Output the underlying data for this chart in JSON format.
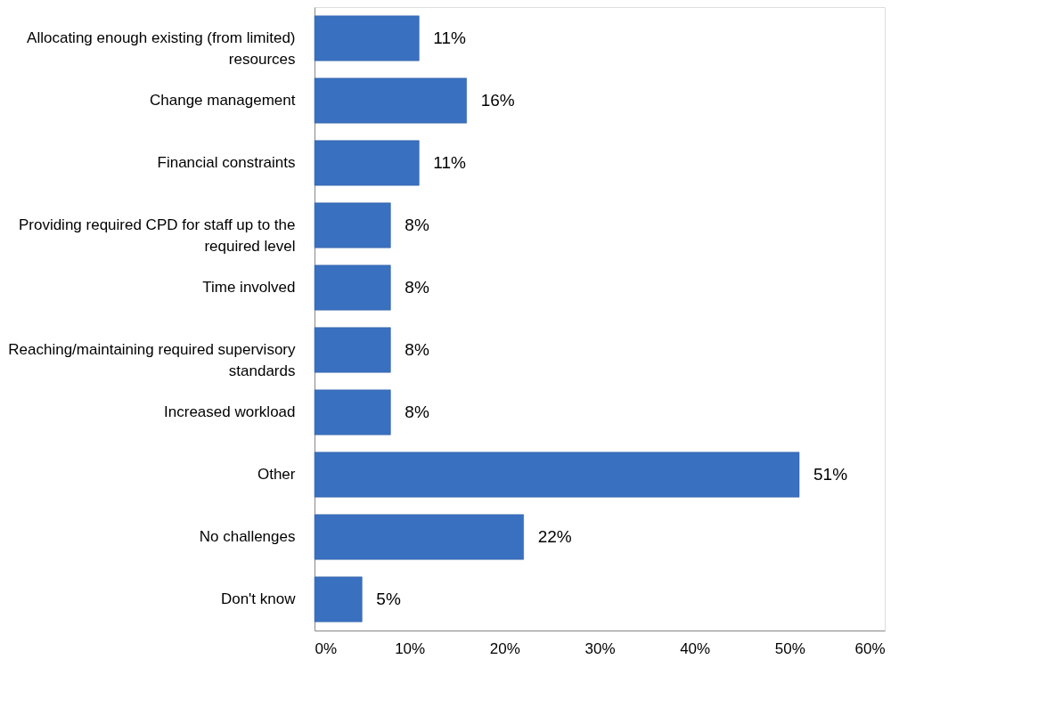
{
  "chart_data": {
    "type": "bar",
    "orientation": "horizontal",
    "categories": [
      "Allocating enough existing (from limited) resources",
      "Change management",
      "Financial constraints",
      "Providing required CPD for staff up to the required level",
      "Time involved",
      "Reaching/maintaining required supervisory standards",
      "Increased workload",
      "Other",
      "No challenges",
      "Don't know"
    ],
    "values": [
      11,
      16,
      11,
      8,
      8,
      8,
      8,
      51,
      22,
      5
    ],
    "value_labels": [
      "11%",
      "16%",
      "11%",
      "8%",
      "8%",
      "8%",
      "8%",
      "51%",
      "22%",
      "5%"
    ],
    "color": "#3a70c0",
    "xlim": [
      0,
      60
    ],
    "xticks": [
      {
        "value": 0,
        "label": "0%"
      },
      {
        "value": 10,
        "label": "10%"
      },
      {
        "value": 20,
        "label": "20%"
      },
      {
        "value": 30,
        "label": "30%"
      },
      {
        "value": 40,
        "label": "40%"
      },
      {
        "value": 50,
        "label": "50%"
      },
      {
        "value": 60,
        "label": "60%"
      }
    ],
    "grid": false
  }
}
